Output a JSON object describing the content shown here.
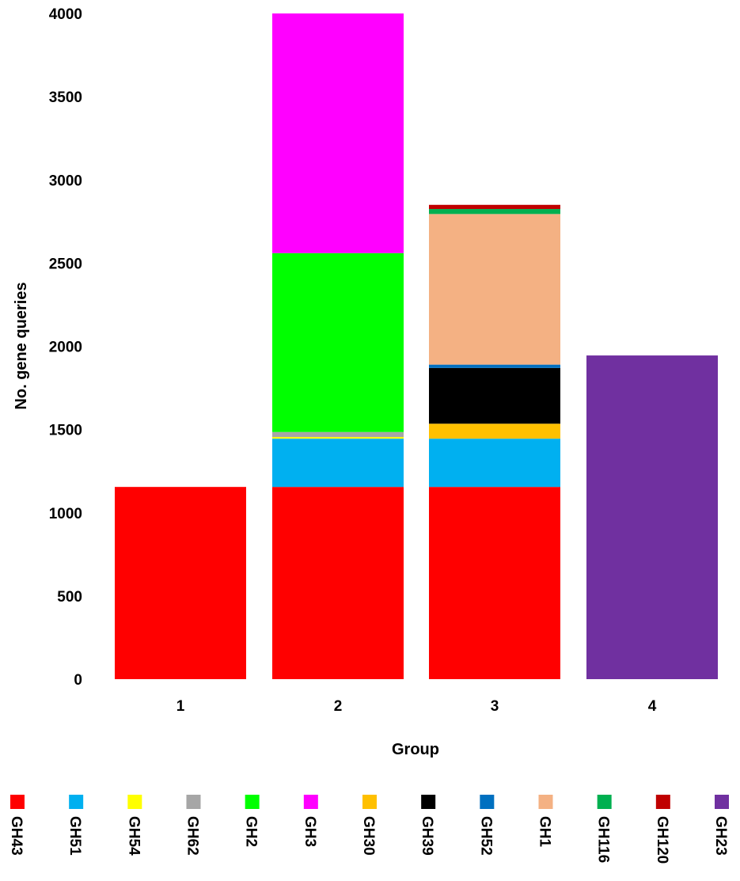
{
  "chart_data": {
    "type": "bar",
    "stacked": true,
    "xlabel": "Group",
    "ylabel": "No. gene queries",
    "ylim": [
      0,
      4000
    ],
    "yticks": [
      "0",
      "500",
      "1000",
      "1500",
      "2000",
      "2500",
      "3000",
      "3500",
      "4000"
    ],
    "categories": [
      "1",
      "2",
      "3",
      "4"
    ],
    "grid": false,
    "legend_position": "bottom",
    "series": [
      {
        "name": "GH43",
        "color": "#FF0000",
        "values": [
          1155,
          1155,
          1155,
          0
        ]
      },
      {
        "name": "GH51",
        "color": "#00B0F0",
        "values": [
          0,
          290,
          290,
          0
        ]
      },
      {
        "name": "GH54",
        "color": "#FFFF00",
        "values": [
          0,
          10,
          0,
          0
        ]
      },
      {
        "name": "GH62",
        "color": "#A6A6A6",
        "values": [
          0,
          30,
          0,
          0
        ]
      },
      {
        "name": "GH2",
        "color": "#00FF00",
        "values": [
          0,
          1075,
          0,
          0
        ]
      },
      {
        "name": "GH3",
        "color": "#FF00FF",
        "values": [
          0,
          1440,
          0,
          0
        ]
      },
      {
        "name": "GH30",
        "color": "#FFC000",
        "values": [
          0,
          0,
          90,
          0
        ]
      },
      {
        "name": "GH39",
        "color": "#000000",
        "values": [
          0,
          0,
          335,
          0
        ]
      },
      {
        "name": "GH52",
        "color": "#0070C0",
        "values": [
          0,
          0,
          20,
          0
        ]
      },
      {
        "name": "GH1",
        "color": "#F4B183",
        "values": [
          0,
          0,
          905,
          0
        ]
      },
      {
        "name": "GH116",
        "color": "#00B050",
        "values": [
          0,
          0,
          30,
          0
        ]
      },
      {
        "name": "GH120",
        "color": "#C00000",
        "values": [
          0,
          0,
          25,
          0
        ]
      },
      {
        "name": "GH23",
        "color": "#7030A0",
        "values": [
          0,
          0,
          0,
          1945
        ]
      }
    ]
  }
}
